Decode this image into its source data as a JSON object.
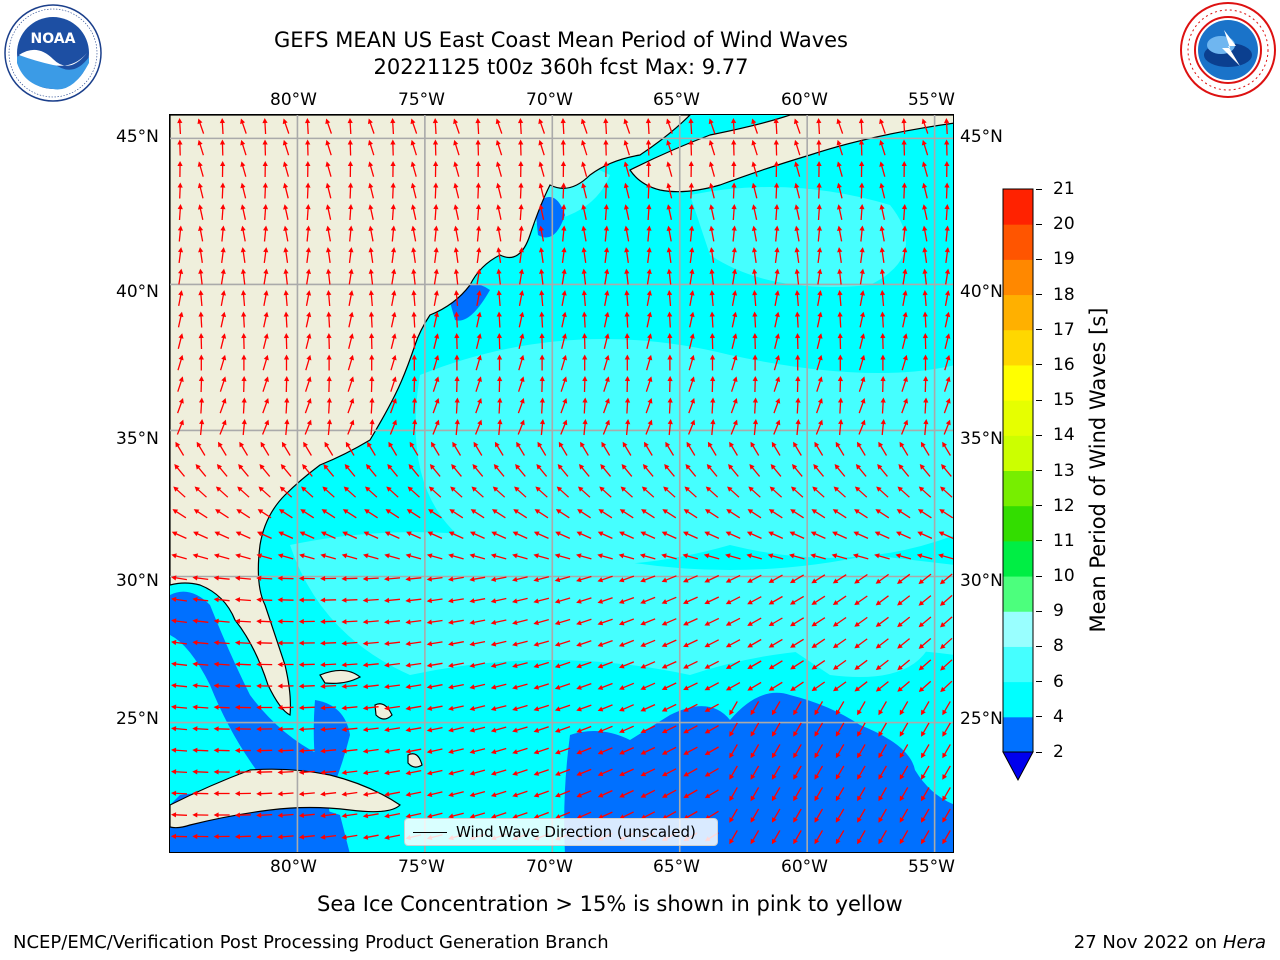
{
  "header": {
    "title_line1": "GEFS MEAN US East Coast Mean Period of Wind Waves",
    "title_line2": "20221125 t00z 360h fcst   Max: 9.77"
  },
  "logos": {
    "left": {
      "name": "noaa-logo",
      "text": "NOAA",
      "ring_text": "NATIONAL OCEANIC AND ATMOSPHERIC ADMINISTRATION · U.S. DEPARTMENT OF COMMERCE"
    },
    "right": {
      "name": "nws-logo",
      "ring_text": "NATIONAL WEATHER SERVICE"
    }
  },
  "map": {
    "lon_labels": [
      "80°W",
      "75°W",
      "70°W",
      "65°W",
      "60°W",
      "55°W"
    ],
    "lat_labels": [
      "45°N",
      "40°N",
      "35°N",
      "30°N",
      "25°N"
    ],
    "lon_values": [
      -80,
      -75,
      -70,
      -65,
      -60,
      -55
    ],
    "lat_values": [
      45,
      40,
      35,
      30,
      25
    ],
    "extent": {
      "lon_min": -85,
      "lon_max": -54.2,
      "lat_min": 20.5,
      "lat_max": 45.8
    },
    "grid": true,
    "land_color": "#efefdc",
    "arrow_color": "#ff0000",
    "legend_text": "Wind Wave Direction (unscaled)"
  },
  "colorbar": {
    "label": "Mean Period of Wind Waves [s]",
    "ticks": [
      "2",
      "4",
      "6",
      "8",
      "9",
      "10",
      "11",
      "12",
      "13",
      "14",
      "15",
      "16",
      "17",
      "18",
      "19",
      "20",
      "21"
    ],
    "colors": [
      "#0070ff",
      "#00ffff",
      "#45ffff",
      "#99ffff",
      "#4cff7d",
      "#00ee44",
      "#33dd00",
      "#77ee00",
      "#ccff00",
      "#e6ff00",
      "#ffff00",
      "#ffd700",
      "#ffb000",
      "#ff8800",
      "#ff5500",
      "#ff2200"
    ],
    "under_color": "#0000ee"
  },
  "footer": {
    "note": "Sea Ice Concentration > 15% is shown in pink to yellow",
    "left": "NCEP/EMC/Verification Post Processing Product Generation Branch",
    "right_date": "27 Nov 2022 on",
    "right_host": "Hera"
  }
}
